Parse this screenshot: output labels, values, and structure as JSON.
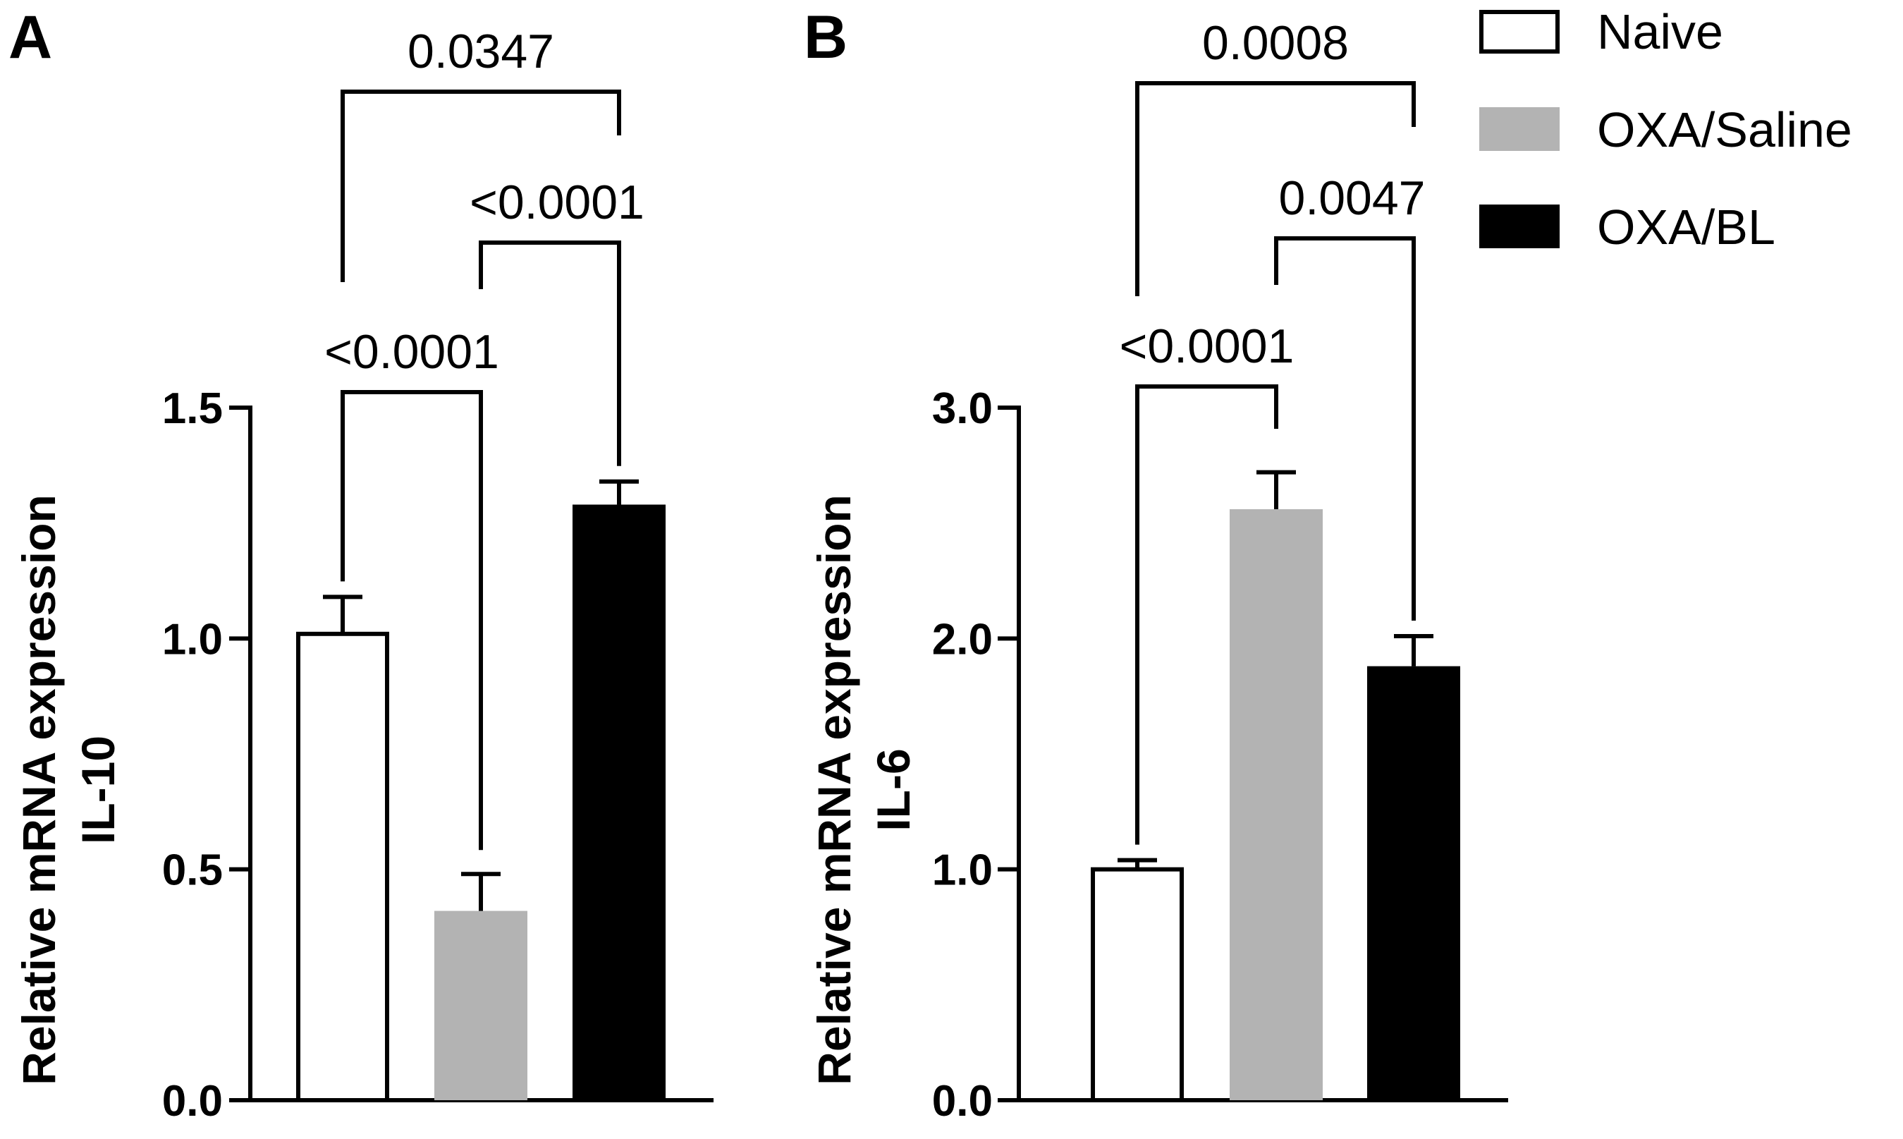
{
  "legend": {
    "items": [
      {
        "label": "Naive",
        "fill": "#ffffff",
        "stroke": "#000000"
      },
      {
        "label": "OXA/Saline",
        "fill": "#b3b3b3",
        "stroke": "#b3b3b3"
      },
      {
        "label": "OXA/BL",
        "fill": "#000000",
        "stroke": "#000000"
      }
    ]
  },
  "chart_data": [
    {
      "panel": "A",
      "type": "bar",
      "title": "",
      "ylabel_line1": "Relative mRNA expression",
      "ylabel_line2": "IL-10",
      "xlabel": "",
      "categories": [
        "Naive",
        "OXA/Saline",
        "OXA/BL"
      ],
      "values": [
        1.01,
        0.41,
        1.29
      ],
      "errors": [
        0.08,
        0.08,
        0.05
      ],
      "ylim": [
        0,
        1.5
      ],
      "yticks": [
        0.0,
        0.5,
        1.0,
        1.5
      ],
      "ytick_labels": [
        "0.0",
        "0.5",
        "1.0",
        "1.5"
      ],
      "comparisons": [
        {
          "from": 0,
          "to": 1,
          "label": "<0.0001"
        },
        {
          "from": 1,
          "to": 2,
          "label": "<0.0001"
        },
        {
          "from": 0,
          "to": 2,
          "label": "0.0347"
        }
      ]
    },
    {
      "panel": "B",
      "type": "bar",
      "title": "",
      "ylabel_line1": "Relative mRNA expression",
      "ylabel_line2": "IL-6",
      "xlabel": "",
      "categories": [
        "Naive",
        "OXA/Saline",
        "OXA/BL"
      ],
      "values": [
        1.0,
        2.56,
        1.88
      ],
      "errors": [
        0.04,
        0.16,
        0.13
      ],
      "ylim": [
        0,
        3.0
      ],
      "yticks": [
        0.0,
        1.0,
        2.0,
        3.0
      ],
      "ytick_labels": [
        "0.0",
        "1.0",
        "2.0",
        "3.0"
      ],
      "comparisons": [
        {
          "from": 0,
          "to": 1,
          "label": "<0.0001"
        },
        {
          "from": 1,
          "to": 2,
          "label": "0.0047"
        },
        {
          "from": 0,
          "to": 2,
          "label": "0.0008"
        }
      ]
    }
  ]
}
